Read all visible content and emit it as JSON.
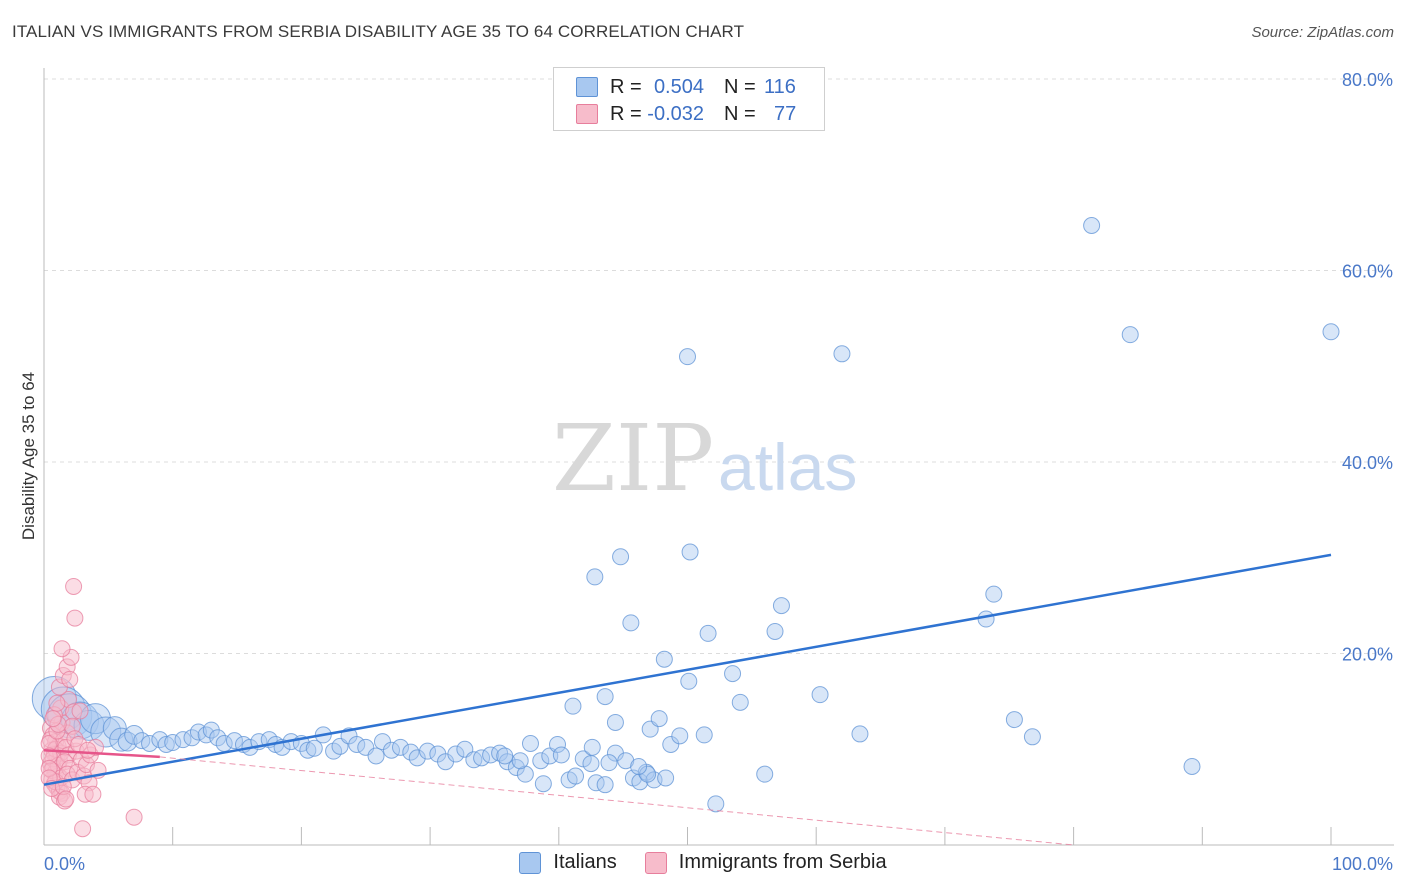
{
  "header": {
    "title": "ITALIAN VS IMMIGRANTS FROM SERBIA DISABILITY AGE 35 TO 64 CORRELATION CHART",
    "source": "Source: ZipAtlas.com"
  },
  "watermark": {
    "zip": "ZIP",
    "atlas": "atlas"
  },
  "legend": {
    "r_label": "R =",
    "n_label": "N =",
    "rows": [
      {
        "r": "0.504",
        "n": "116",
        "color": "#a8c8f0",
        "border": "#5f93d6"
      },
      {
        "r": "-0.032",
        "n": "77",
        "color": "#f7bccb",
        "border": "#e77e9c"
      }
    ]
  },
  "bottom_legend": [
    {
      "label": "Italians",
      "color": "#a8c8f0",
      "border": "#5f93d6"
    },
    {
      "label": "Immigrants from Serbia",
      "color": "#f7bccb",
      "border": "#e77e9c"
    }
  ],
  "chart_data": {
    "type": "scatter",
    "title": "ITALIAN VS IMMIGRANTS FROM SERBIA DISABILITY AGE 35 TO 64 CORRELATION CHART",
    "xlabel": "",
    "ylabel": "Disability Age 35 to 64",
    "xlim": [
      0,
      100
    ],
    "ylim": [
      0,
      80
    ],
    "x_tick_labels": [
      "0.0%",
      "100.0%"
    ],
    "y_tick_labels": [
      "20.0%",
      "40.0%",
      "60.0%",
      "80.0%"
    ],
    "y_tick_values": [
      20,
      40,
      60,
      80
    ],
    "grid": true,
    "series": [
      {
        "name": "Italians",
        "color": "#5f93d6",
        "fill": "#a8c8f0",
        "trend": {
          "x": [
            0,
            100
          ],
          "y": [
            6.3,
            30.3
          ],
          "style": "solid"
        },
        "points": [
          [
            0.8,
            15.3,
            3
          ],
          [
            1.5,
            14.2,
            3
          ],
          [
            2,
            13.5,
            3
          ],
          [
            2.8,
            13,
            2.5
          ],
          [
            3.5,
            12.5,
            2
          ],
          [
            4,
            13.2,
            2
          ],
          [
            4.8,
            11.8,
            2
          ],
          [
            5.5,
            12.2,
            1.5
          ],
          [
            6,
            11,
            1.5
          ],
          [
            6.5,
            10.8,
            1.2
          ],
          [
            7,
            11.5,
            1.2
          ],
          [
            7.6,
            10.9,
            1
          ],
          [
            8.2,
            10.6,
            1
          ],
          [
            9,
            11,
            1
          ],
          [
            9.5,
            10.5,
            1
          ],
          [
            10,
            10.7,
            1
          ],
          [
            10.8,
            11,
            1
          ],
          [
            11.5,
            11.2,
            1
          ],
          [
            12,
            11.8,
            1
          ],
          [
            12.6,
            11.5,
            1
          ],
          [
            13,
            12,
            1
          ],
          [
            13.5,
            11.2,
            1
          ],
          [
            14,
            10.6,
            1
          ],
          [
            14.8,
            10.9,
            1
          ],
          [
            15.5,
            10.5,
            1
          ],
          [
            16,
            10.2,
            1
          ],
          [
            16.7,
            10.8,
            1
          ],
          [
            17.5,
            11,
            1
          ],
          [
            18,
            10.5,
            1
          ],
          [
            18.5,
            10.2,
            1
          ],
          [
            19.2,
            10.8,
            1
          ],
          [
            20,
            10.6,
            1
          ],
          [
            20.5,
            9.9,
            1
          ],
          [
            21,
            10.1,
            1
          ],
          [
            21.7,
            11.5,
            1
          ],
          [
            22.5,
            9.8,
            1
          ],
          [
            23,
            10.3,
            1
          ],
          [
            23.7,
            11.4,
            1
          ],
          [
            24.3,
            10.5,
            1
          ],
          [
            25,
            10.2,
            1
          ],
          [
            25.8,
            9.3,
            1
          ],
          [
            26.3,
            10.8,
            1
          ],
          [
            27,
            9.9,
            1
          ],
          [
            27.7,
            10.2,
            1
          ],
          [
            28.5,
            9.7,
            1
          ],
          [
            29,
            9.1,
            1
          ],
          [
            29.8,
            9.8,
            1
          ],
          [
            30.6,
            9.5,
            1
          ],
          [
            31.2,
            8.7,
            1
          ],
          [
            32,
            9.5,
            1
          ],
          [
            32.7,
            10,
            1
          ],
          [
            33.4,
            8.9,
            1
          ],
          [
            34,
            9.1,
            1
          ],
          [
            34.7,
            9.4,
            1
          ],
          [
            35.4,
            9.6,
            1
          ],
          [
            36,
            8.7,
            1
          ],
          [
            36.7,
            8.1,
            1
          ],
          [
            37.4,
            7.4,
            1
          ],
          [
            37.8,
            10.6,
            1
          ],
          [
            38.6,
            8.8,
            1
          ],
          [
            39.3,
            9.3,
            1
          ],
          [
            39.9,
            10.5,
            1
          ],
          [
            40.8,
            6.8,
            1
          ],
          [
            41.3,
            7.2,
            1
          ],
          [
            41.9,
            9.0,
            1
          ],
          [
            42.5,
            8.5,
            1
          ],
          [
            42.9,
            6.5,
            1
          ],
          [
            43.6,
            6.3,
            1
          ],
          [
            44.4,
            9.6,
            1
          ],
          [
            45.2,
            8.8,
            1
          ],
          [
            45.8,
            7.0,
            1
          ],
          [
            46.3,
            6.6,
            1
          ],
          [
            46.8,
            7.6,
            1
          ],
          [
            47.4,
            6.8,
            1
          ],
          [
            48.3,
            7.0,
            1
          ],
          [
            38.8,
            6.4,
            1
          ],
          [
            40.2,
            9.4,
            1
          ],
          [
            42.6,
            10.2,
            1
          ],
          [
            41.1,
            14.5,
            1
          ],
          [
            43.6,
            15.5,
            1
          ],
          [
            42.8,
            28.0,
            1
          ],
          [
            44.8,
            30.1,
            1
          ],
          [
            45.6,
            23.2,
            1
          ],
          [
            48.2,
            19.4,
            1
          ],
          [
            44.4,
            12.8,
            1
          ],
          [
            47.1,
            12.1,
            1
          ],
          [
            48.7,
            10.5,
            1
          ],
          [
            49.4,
            11.4,
            1
          ],
          [
            47.8,
            13.2,
            1
          ],
          [
            50.1,
            17.1,
            1
          ],
          [
            53.5,
            17.9,
            1
          ],
          [
            46.9,
            7.4,
            1
          ],
          [
            46.2,
            8.2,
            1
          ],
          [
            43.9,
            8.6,
            1
          ],
          [
            51.3,
            11.5,
            1
          ],
          [
            52.2,
            4.3,
            1
          ],
          [
            56,
            7.4,
            1
          ],
          [
            57.3,
            25.0,
            1
          ],
          [
            56.8,
            22.3,
            1
          ],
          [
            54.1,
            14.9,
            1
          ],
          [
            50,
            51.0,
            1
          ],
          [
            51.6,
            22.1,
            1
          ],
          [
            50.2,
            30.6,
            1
          ],
          [
            60.3,
            15.7,
            1
          ],
          [
            63.4,
            11.6,
            1
          ],
          [
            62,
            51.3,
            1
          ],
          [
            73.8,
            26.2,
            1
          ],
          [
            73.2,
            23.6,
            1
          ],
          [
            75.4,
            13.1,
            1
          ],
          [
            76.8,
            11.3,
            1
          ],
          [
            81.4,
            64.7,
            1
          ],
          [
            84.4,
            53.3,
            1
          ],
          [
            100,
            53.6,
            1
          ],
          [
            89.2,
            8.2,
            1
          ],
          [
            37.0,
            8.8,
            1
          ],
          [
            35.8,
            9.3,
            1
          ]
        ]
      },
      {
        "name": "Immigrants from Serbia",
        "color": "#e77e9c",
        "fill": "#f7bccb",
        "trend": {
          "x": [
            0,
            9
          ],
          "y": [
            9.9,
            9.2
          ],
          "style": "solid",
          "dashed_extension": {
            "x": [
              9,
              80
            ],
            "y": [
              9.2,
              0.0
            ]
          }
        },
        "points": [
          [
            0.5,
            12.2,
            1
          ],
          [
            0.7,
            11.5,
            1
          ],
          [
            0.9,
            10.8,
            1
          ],
          [
            1.1,
            10.3,
            1
          ],
          [
            0.6,
            9.9,
            1
          ],
          [
            0.8,
            9.5,
            1
          ],
          [
            1.0,
            9.2,
            1
          ],
          [
            1.2,
            8.8,
            1
          ],
          [
            0.5,
            8.5,
            1
          ],
          [
            0.7,
            8.1,
            1
          ],
          [
            0.9,
            7.6,
            1
          ],
          [
            1.1,
            7.2,
            1
          ],
          [
            0.6,
            6.8,
            1
          ],
          [
            0.8,
            6.4,
            1
          ],
          [
            1.0,
            6.0,
            1
          ],
          [
            1.2,
            5.6,
            1
          ],
          [
            0.5,
            11.0,
            1
          ],
          [
            0.9,
            10.0,
            1
          ],
          [
            1.3,
            9.6,
            1
          ],
          [
            0.7,
            9.0,
            1
          ],
          [
            1.1,
            8.3,
            1
          ],
          [
            0.6,
            7.8,
            1
          ],
          [
            1.3,
            7.0,
            1
          ],
          [
            0.9,
            6.6,
            1
          ],
          [
            1.4,
            5.4,
            1
          ],
          [
            1.2,
            5.0,
            1
          ],
          [
            1.6,
            4.6,
            1
          ],
          [
            1.4,
            12.8,
            1
          ],
          [
            1.8,
            11.7,
            1
          ],
          [
            1.5,
            10.9,
            1
          ],
          [
            1.7,
            10.2,
            1
          ],
          [
            1.9,
            9.4,
            1
          ],
          [
            1.6,
            8.7,
            1
          ],
          [
            2.0,
            8.0,
            1
          ],
          [
            1.8,
            7.4,
            1
          ],
          [
            2.2,
            6.8,
            1
          ],
          [
            1.3,
            14.3,
            1
          ],
          [
            1.9,
            15.2,
            1
          ],
          [
            2.3,
            13.9,
            1
          ],
          [
            1.2,
            16.5,
            1
          ],
          [
            1.5,
            17.7,
            1
          ],
          [
            1.8,
            18.6,
            1
          ],
          [
            2.1,
            19.6,
            1
          ],
          [
            1.4,
            20.5,
            1
          ],
          [
            2.0,
            17.3,
            1
          ],
          [
            2.3,
            27.0,
            1
          ],
          [
            2.4,
            23.7,
            1
          ],
          [
            2.8,
            14.0,
            1
          ],
          [
            2.5,
            9.8,
            1
          ],
          [
            2.9,
            8.9,
            1
          ],
          [
            2.6,
            7.6,
            1
          ],
          [
            3.1,
            7.2,
            1
          ],
          [
            3.3,
            8.4,
            1
          ],
          [
            3.5,
            6.5,
            1
          ],
          [
            3.2,
            5.3,
            1
          ],
          [
            3.0,
            1.7,
            1
          ],
          [
            3.8,
            5.3,
            1
          ],
          [
            3.6,
            9.4,
            1
          ],
          [
            4.0,
            10.2,
            1
          ],
          [
            7.0,
            2.9,
            1
          ],
          [
            0.8,
            13.6,
            1
          ],
          [
            1.0,
            14.8,
            1
          ],
          [
            0.4,
            10.6,
            1
          ],
          [
            0.4,
            9.3,
            1
          ],
          [
            0.4,
            8.0,
            1
          ],
          [
            0.4,
            7.0,
            1
          ],
          [
            0.6,
            5.9,
            1
          ],
          [
            1.0,
            11.9,
            1
          ],
          [
            1.5,
            6.1,
            1
          ],
          [
            1.7,
            4.8,
            1
          ],
          [
            2.2,
            12.4,
            1
          ],
          [
            2.4,
            11.1,
            1
          ],
          [
            2.7,
            10.5,
            1
          ],
          [
            3.4,
            9.9,
            1
          ],
          [
            4.2,
            7.8,
            1
          ],
          [
            1.1,
            12.6,
            1
          ],
          [
            0.7,
            13.2,
            1
          ]
        ]
      }
    ]
  }
}
